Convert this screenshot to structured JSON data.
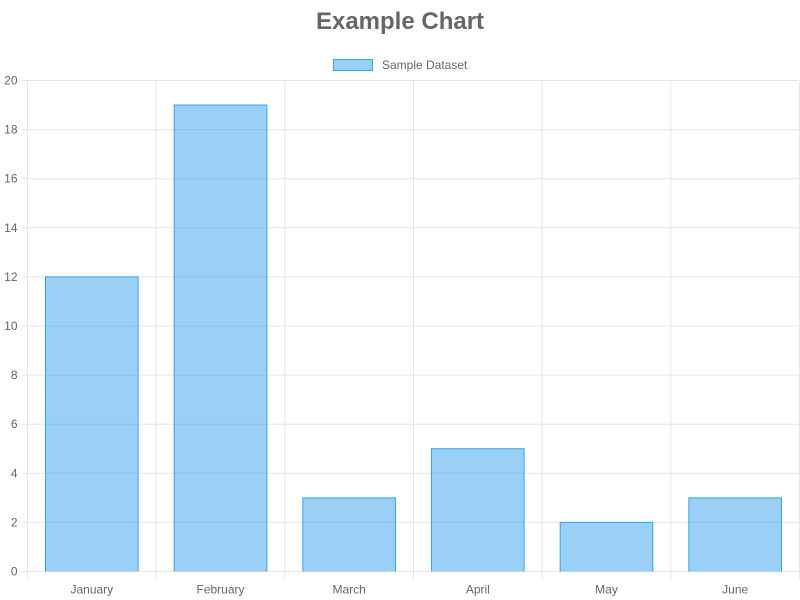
{
  "chart_data": {
    "type": "bar",
    "title": "Example Chart",
    "xlabel": "",
    "ylabel": "",
    "categories": [
      "January",
      "February",
      "March",
      "April",
      "May",
      "June"
    ],
    "series": [
      {
        "name": "Sample Dataset",
        "values": [
          12,
          19,
          3,
          5,
          2,
          3
        ]
      }
    ],
    "ylim": [
      0,
      20
    ],
    "yticks": [
      0,
      2,
      4,
      6,
      8,
      10,
      12,
      14,
      16,
      18,
      20
    ],
    "grid": true,
    "legend": "top-center",
    "colors": {
      "bar_fill": "rgba(54, 162, 235, 0.5)",
      "bar_border": "#36a2eb",
      "grid": "#e5e5e5",
      "text": "#666666"
    }
  }
}
